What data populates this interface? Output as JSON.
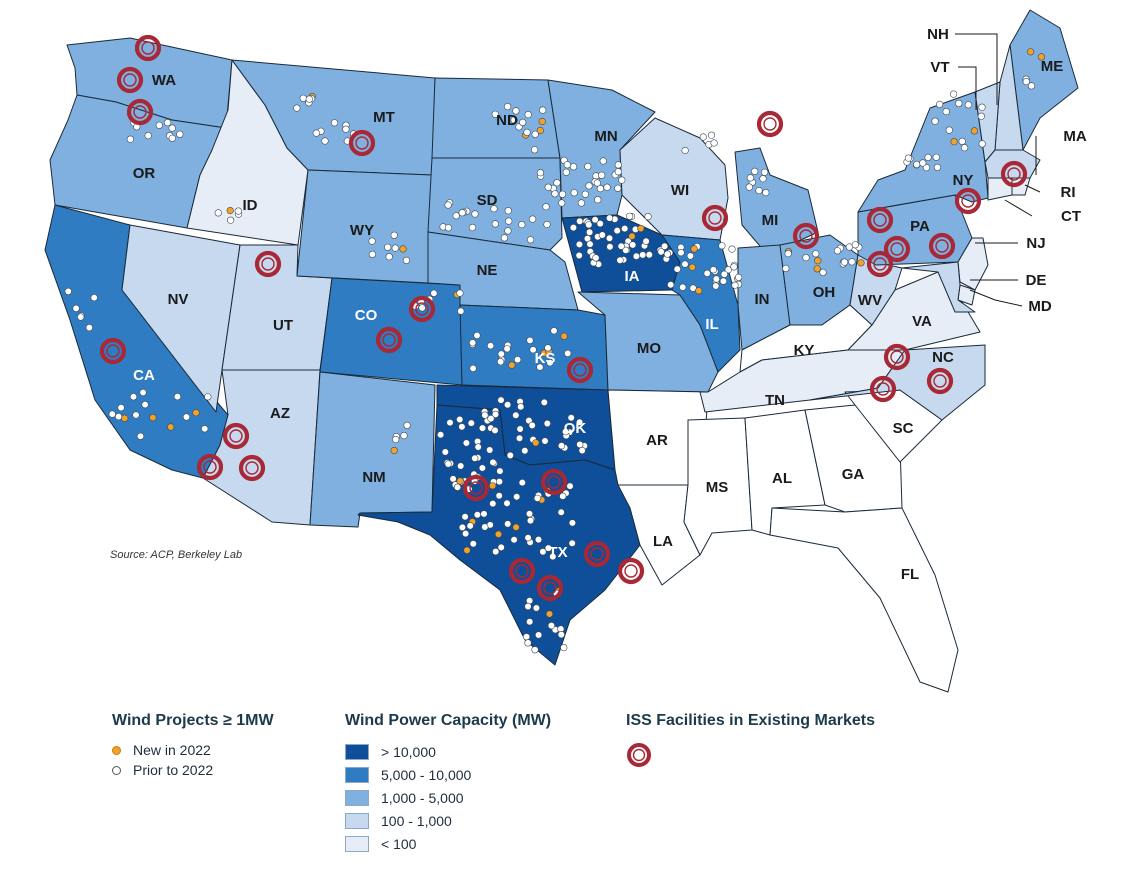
{
  "source": "Source: ACP, Berkeley Lab",
  "colors": {
    "gt10000": "#0f4e98",
    "c5000_10000": "#2f7cc2",
    "c1000_5000": "#7fb0df",
    "c100_1000": "#c6d9ef",
    "lt100": "#e6edf7",
    "none": "#ffffff",
    "iss": "#a82835",
    "new": "#f4a227",
    "prior": "#ffffff"
  },
  "states": [
    {
      "abbr": "WA",
      "tier": "c1000_5000"
    },
    {
      "abbr": "OR",
      "tier": "c1000_5000"
    },
    {
      "abbr": "CA",
      "tier": "c5000_10000"
    },
    {
      "abbr": "ID",
      "tier": "lt100"
    },
    {
      "abbr": "NV",
      "tier": "c100_1000"
    },
    {
      "abbr": "UT",
      "tier": "c100_1000"
    },
    {
      "abbr": "AZ",
      "tier": "c100_1000"
    },
    {
      "abbr": "MT",
      "tier": "c1000_5000"
    },
    {
      "abbr": "WY",
      "tier": "c1000_5000"
    },
    {
      "abbr": "CO",
      "tier": "c5000_10000"
    },
    {
      "abbr": "NM",
      "tier": "c1000_5000"
    },
    {
      "abbr": "ND",
      "tier": "c1000_5000"
    },
    {
      "abbr": "SD",
      "tier": "c1000_5000"
    },
    {
      "abbr": "NE",
      "tier": "c1000_5000"
    },
    {
      "abbr": "KS",
      "tier": "c5000_10000"
    },
    {
      "abbr": "OK",
      "tier": "gt10000"
    },
    {
      "abbr": "TX",
      "tier": "gt10000"
    },
    {
      "abbr": "MN",
      "tier": "c1000_5000"
    },
    {
      "abbr": "IA",
      "tier": "gt10000"
    },
    {
      "abbr": "MO",
      "tier": "c1000_5000"
    },
    {
      "abbr": "AR",
      "tier": "none"
    },
    {
      "abbr": "LA",
      "tier": "none"
    },
    {
      "abbr": "WI",
      "tier": "c100_1000"
    },
    {
      "abbr": "IL",
      "tier": "c5000_10000"
    },
    {
      "abbr": "MI",
      "tier": "c1000_5000"
    },
    {
      "abbr": "IN",
      "tier": "c1000_5000"
    },
    {
      "abbr": "OH",
      "tier": "c1000_5000"
    },
    {
      "abbr": "KY",
      "tier": "none"
    },
    {
      "abbr": "TN",
      "tier": "lt100"
    },
    {
      "abbr": "MS",
      "tier": "none"
    },
    {
      "abbr": "AL",
      "tier": "none"
    },
    {
      "abbr": "GA",
      "tier": "none"
    },
    {
      "abbr": "FL",
      "tier": "none"
    },
    {
      "abbr": "SC",
      "tier": "none"
    },
    {
      "abbr": "NC",
      "tier": "c100_1000"
    },
    {
      "abbr": "VA",
      "tier": "lt100"
    },
    {
      "abbr": "WV",
      "tier": "c100_1000"
    },
    {
      "abbr": "PA",
      "tier": "c1000_5000"
    },
    {
      "abbr": "NY",
      "tier": "c1000_5000"
    },
    {
      "abbr": "ME",
      "tier": "c1000_5000"
    },
    {
      "abbr": "NH",
      "tier": "c100_1000"
    },
    {
      "abbr": "VT",
      "tier": "c100_1000"
    },
    {
      "abbr": "MA",
      "tier": "c100_1000"
    },
    {
      "abbr": "RI",
      "tier": "lt100"
    },
    {
      "abbr": "CT",
      "tier": "lt100"
    },
    {
      "abbr": "NJ",
      "tier": "lt100"
    },
    {
      "abbr": "DE",
      "tier": "lt100"
    },
    {
      "abbr": "MD",
      "tier": "c100_1000"
    }
  ],
  "legend_projects": {
    "title": "Wind Projects ≥ 1MW",
    "items": [
      {
        "label": "New in 2022",
        "color": "#f4a227"
      },
      {
        "label": "Prior to 2022",
        "color": "#ffffff"
      }
    ]
  },
  "legend_capacity": {
    "title": "Wind Power Capacity (MW)",
    "items": [
      {
        "label": "> 10,000",
        "color": "#0f4e98"
      },
      {
        "label": "5,000 - 10,000",
        "color": "#2f7cc2"
      },
      {
        "label": "1,000 - 5,000",
        "color": "#7fb0df"
      },
      {
        "label": "100 - 1,000",
        "color": "#c6d9ef"
      },
      {
        "label": "< 100",
        "color": "#e6edf7"
      }
    ]
  },
  "legend_iss": {
    "title": "ISS Facilities in Existing Markets"
  }
}
